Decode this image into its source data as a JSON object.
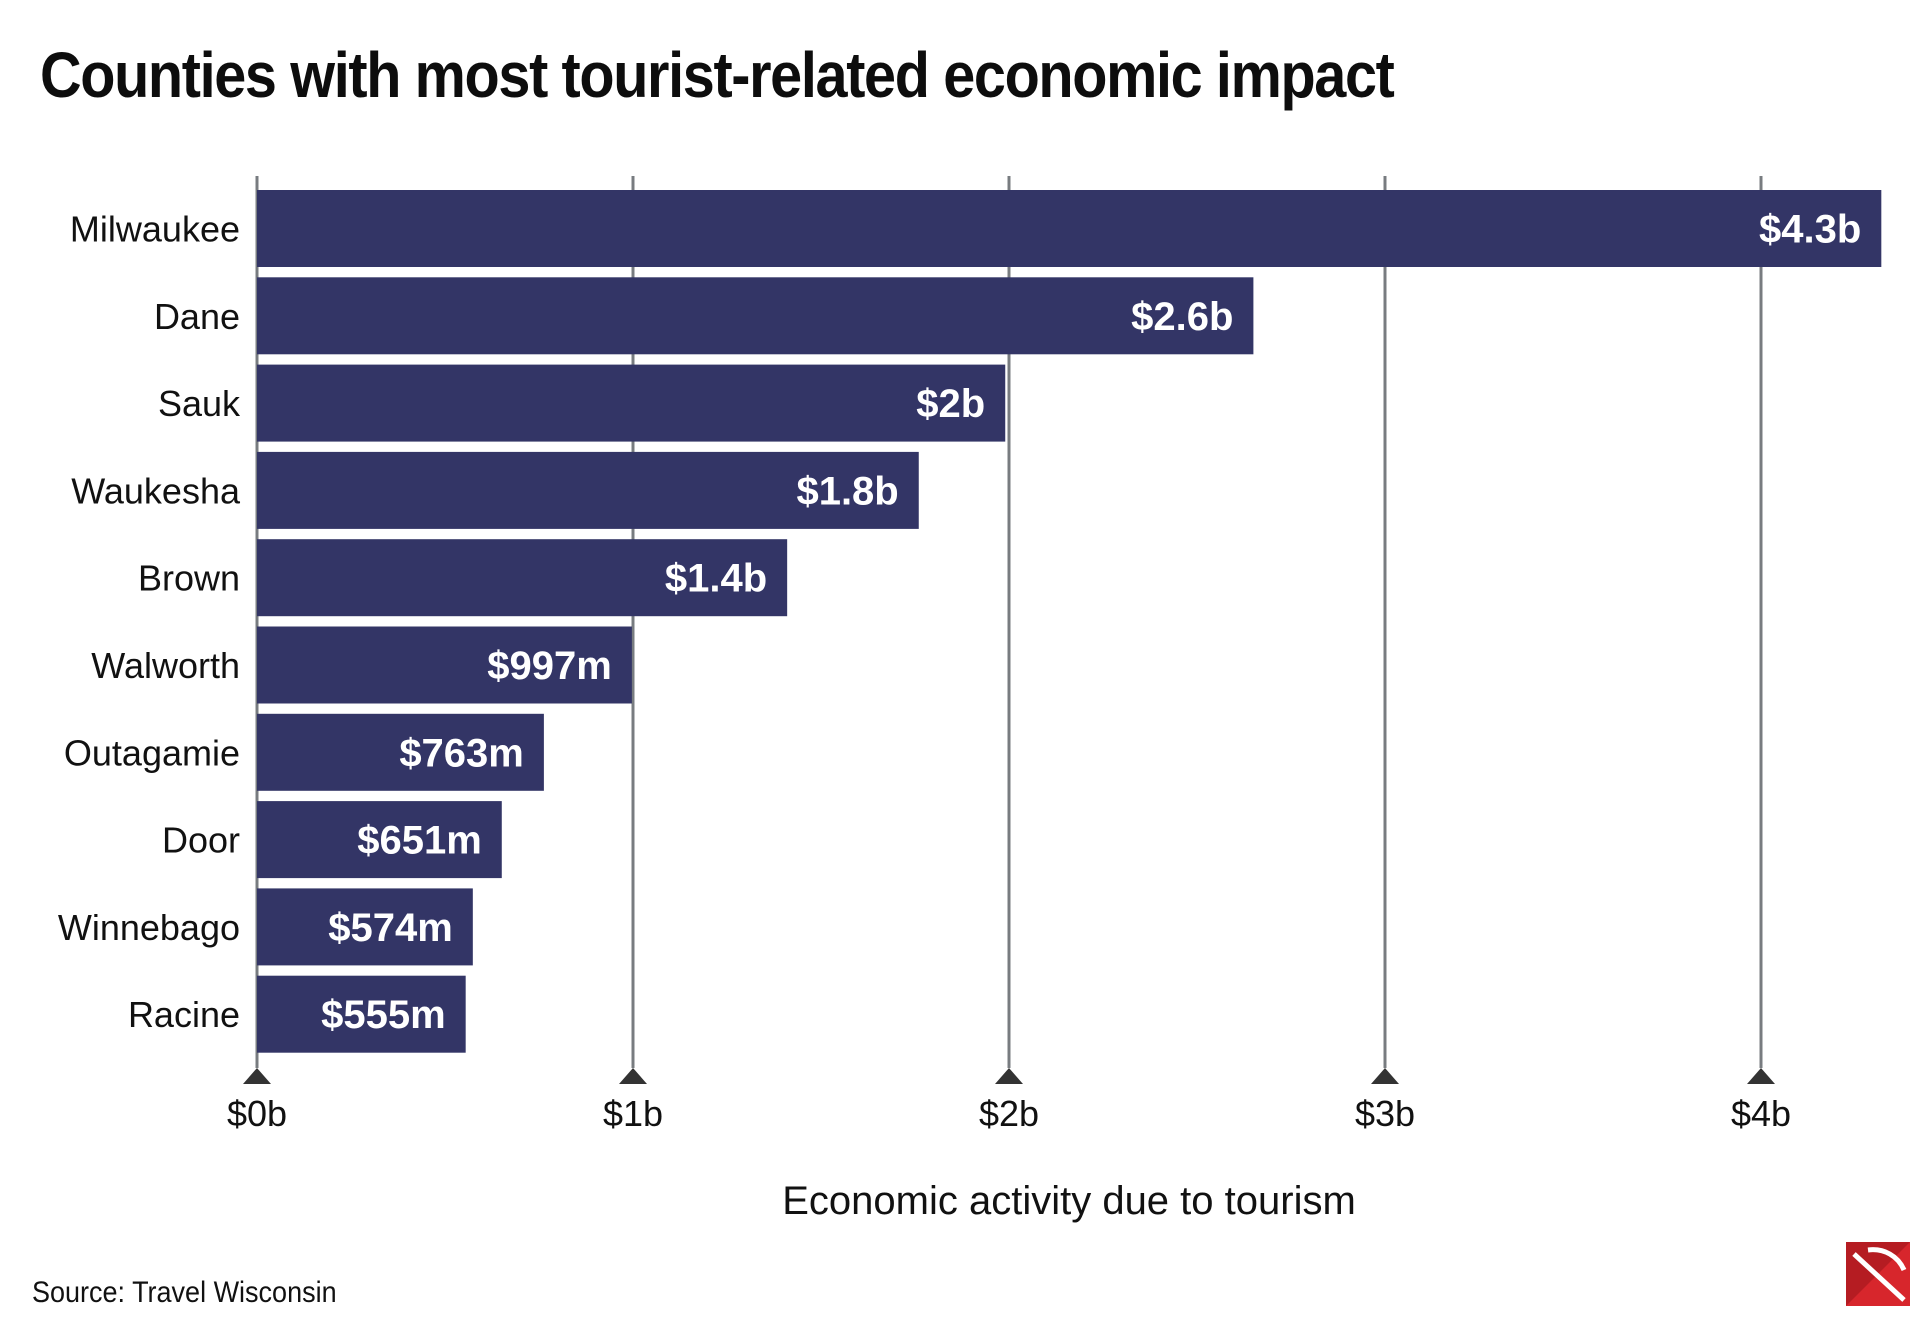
{
  "chart_data": {
    "type": "bar",
    "orientation": "horizontal",
    "title": "Counties with most tourist-related economic impact",
    "xlabel": "Economic activity due to tourism",
    "ylabel": "",
    "categories": [
      "Milwaukee",
      "Dane",
      "Sauk",
      "Waukesha",
      "Brown",
      "Walworth",
      "Outagamie",
      "Door",
      "Winnebago",
      "Racine"
    ],
    "values": [
      4.32,
      2.65,
      1.99,
      1.76,
      1.41,
      0.997,
      0.763,
      0.651,
      0.574,
      0.555
    ],
    "value_labels": [
      "$4.3b",
      "$2.6b",
      "$2b",
      "$1.8b",
      "$1.4b",
      "$997m",
      "$763m",
      "$651m",
      "$574m",
      "$555m"
    ],
    "value_unit": "billions of dollars",
    "xlim": [
      0,
      4.32
    ],
    "x_ticks": [
      0,
      1,
      2,
      3,
      4
    ],
    "x_tick_labels": [
      "$0b",
      "$1b",
      "$2b",
      "$3b",
      "$4b"
    ],
    "grid": true,
    "legend": "none",
    "source": "Source: Travel Wisconsin"
  },
  "colors": {
    "bar": "#333566",
    "bar_label": "#ffffff",
    "gridline": "#787c80",
    "tick_marker": "#333333",
    "text": "#111111",
    "logo_red": "#d7262c"
  },
  "icons": {
    "logo": "brand-logo-icon"
  }
}
